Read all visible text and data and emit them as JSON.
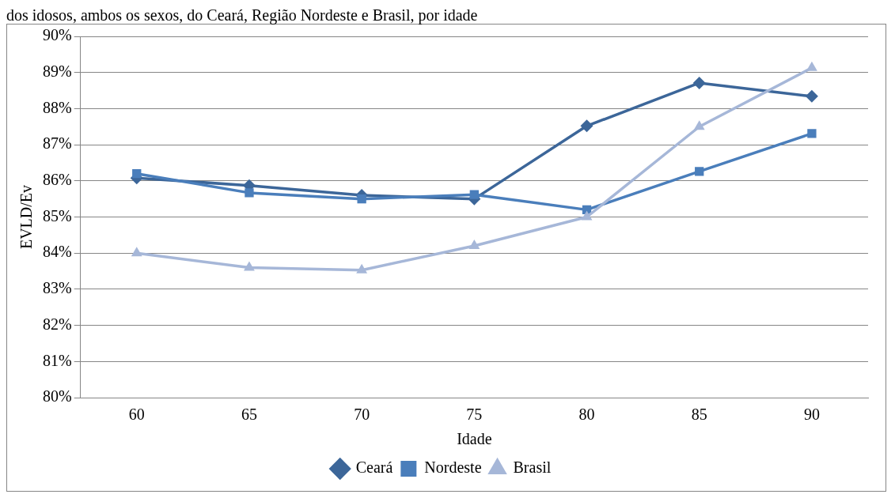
{
  "chart_data": {
    "type": "line",
    "title": "dos idosos, ambos os sexos, do Ceará, Região Nordeste e Brasil, por idade",
    "xlabel": "Idade",
    "ylabel": "EVLD/Ev",
    "categories": [
      "60",
      "65",
      "70",
      "75",
      "80",
      "85",
      "90"
    ],
    "series": [
      {
        "name": "Ceará",
        "color": "#3c6699",
        "marker": "diamond",
        "values": [
          86.08,
          85.87,
          85.6,
          85.5,
          87.52,
          88.71,
          88.34
        ]
      },
      {
        "name": "Nordeste",
        "color": "#4a7ebb",
        "marker": "square",
        "values": [
          86.2,
          85.67,
          85.5,
          85.62,
          85.2,
          86.26,
          87.31
        ]
      },
      {
        "name": "Brasil",
        "color": "#a6b7d8",
        "marker": "triangle",
        "values": [
          84.0,
          83.6,
          83.53,
          84.2,
          85.0,
          87.5,
          89.13
        ]
      }
    ],
    "ylim": [
      80,
      90
    ],
    "yticks": [
      {
        "value": 80,
        "label": "80%"
      },
      {
        "value": 81,
        "label": "81%"
      },
      {
        "value": 82,
        "label": "82%"
      },
      {
        "value": 83,
        "label": "83%"
      },
      {
        "value": 84,
        "label": "84%"
      },
      {
        "value": 85,
        "label": "85%"
      },
      {
        "value": 86,
        "label": "86%"
      },
      {
        "value": 87,
        "label": "87%"
      },
      {
        "value": 88,
        "label": "88%"
      },
      {
        "value": 89,
        "label": "89%"
      },
      {
        "value": 90,
        "label": "90%"
      }
    ],
    "grid": "y",
    "legend": "bottom"
  }
}
